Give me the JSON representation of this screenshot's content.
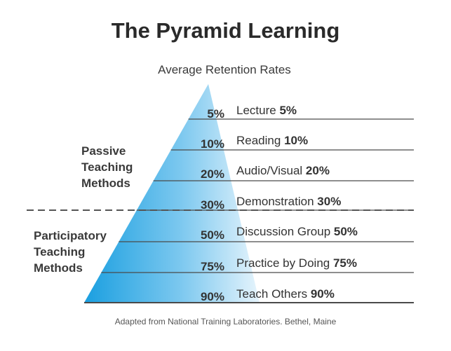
{
  "title": "The Pyramid Learning",
  "subtitle": "Average Retention Rates",
  "groups": {
    "passive": "Passive\nTeaching\nMethods",
    "participatory": "Participatory\nTeaching\nMethods"
  },
  "levels": [
    {
      "pct": "5%",
      "name": "Lecture",
      "value": "5%"
    },
    {
      "pct": "10%",
      "name": "Reading",
      "value": "10%"
    },
    {
      "pct": "20%",
      "name": "Audio/Visual",
      "value": "20%"
    },
    {
      "pct": "30%",
      "name": "Demonstration",
      "value": "30%"
    },
    {
      "pct": "50%",
      "name": "Discussion Group",
      "value": "50%"
    },
    {
      "pct": "75%",
      "name": "Practice by Doing",
      "value": "75%"
    },
    {
      "pct": "90%",
      "name": "Teach Others",
      "value": "90%"
    }
  ],
  "source": "Adapted from National Training Laboratories. Bethel, Maine",
  "colors": {
    "pyramid_dark": "#1a9fe0",
    "pyramid_light": "#e6f4fc",
    "lines": "#4a4a4a",
    "divider": "#555555"
  }
}
